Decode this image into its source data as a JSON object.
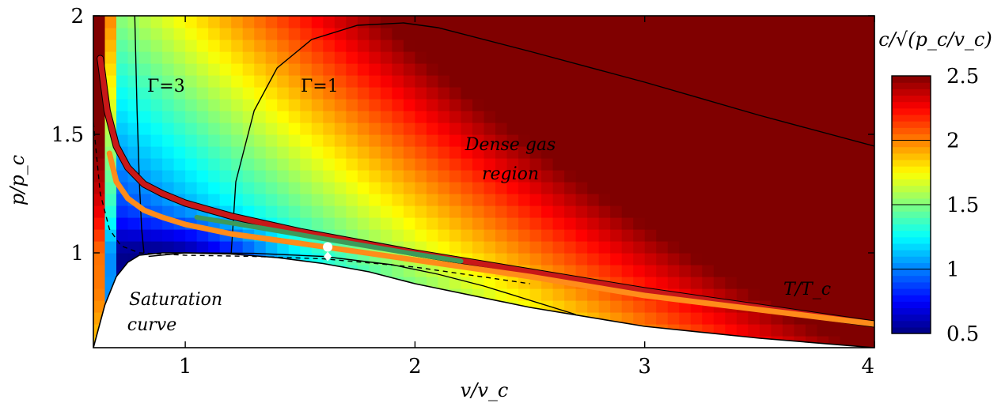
{
  "chart_data": {
    "type": "heatmap",
    "title": "",
    "xlabel": "v/v_c",
    "ylabel": "p/p_c",
    "xlim": [
      0.6,
      4.0
    ],
    "ylim": [
      0.6,
      2.0
    ],
    "x_ticks": [
      1,
      2,
      3,
      4
    ],
    "y_ticks": [
      1,
      1.5,
      2
    ],
    "x_tick_labels": [
      "1",
      "2",
      "3",
      "4"
    ],
    "y_tick_labels": [
      "1",
      "1.5",
      "2"
    ],
    "grid": false,
    "colorbar": {
      "title": "c/√(p_c/v_c)",
      "range": [
        0.5,
        2.5
      ],
      "ticks": [
        0.5,
        1,
        1.5,
        2,
        2.5
      ],
      "tick_labels": [
        "0.5",
        "1",
        "1.5",
        "2",
        "2.5"
      ],
      "colormap": "jet"
    },
    "annotations": {
      "gamma3": "Γ=3",
      "gamma1": "Γ=1",
      "dense_gas_line1": "Dense gas",
      "dense_gas_line2": "region",
      "saturation_line1": "Saturation",
      "saturation_line2": "curve",
      "isotherm": "T/T_c"
    },
    "saturation_curve": {
      "x": [
        0.6,
        0.65,
        0.7,
        0.75,
        0.8,
        0.9,
        1.0,
        1.2,
        1.4,
        1.6,
        1.8,
        2.0,
        2.5,
        3.0,
        3.5,
        4.0
      ],
      "y": [
        0.6,
        0.78,
        0.9,
        0.96,
        0.99,
        1.0,
        1.0,
        0.995,
        0.98,
        0.955,
        0.92,
        0.87,
        0.77,
        0.69,
        0.64,
        0.6
      ]
    },
    "gamma3_curve": {
      "x": [
        0.78,
        0.79,
        0.8,
        0.81,
        0.82
      ],
      "y": [
        2.0,
        1.6,
        1.3,
        1.1,
        1.0
      ]
    },
    "gamma1_curve": {
      "x": [
        1.2,
        1.22,
        1.3,
        1.4,
        1.55,
        1.75,
        1.95,
        2.1,
        2.5,
        3.0,
        3.5,
        4.0
      ],
      "y": [
        1.0,
        1.3,
        1.6,
        1.78,
        1.9,
        1.96,
        1.97,
        1.95,
        1.85,
        1.72,
        1.58,
        1.45
      ]
    },
    "gamma1_lower_curve": {
      "x": [
        0.84,
        1.0,
        1.3,
        1.6,
        1.9,
        2.1,
        2.3,
        2.5,
        2.7
      ],
      "y": [
        0.985,
        1.0,
        0.998,
        0.985,
        0.95,
        0.91,
        0.86,
        0.8,
        0.74
      ]
    },
    "dashed_curve": {
      "x": [
        0.6,
        0.63,
        0.67,
        0.72,
        0.8,
        1.0,
        1.3,
        1.6,
        2.0,
        2.5
      ],
      "y": [
        1.55,
        1.25,
        1.1,
        1.03,
        1.0,
        0.99,
        0.985,
        0.975,
        0.94,
        0.87
      ]
    },
    "series": [
      {
        "color": "#c81818",
        "x": [
          0.63,
          0.66,
          0.7,
          0.75,
          0.82,
          0.9,
          1.0,
          1.2,
          1.5,
          2.0,
          2.5,
          3.0,
          3.5,
          4.0
        ],
        "y": [
          1.82,
          1.6,
          1.45,
          1.36,
          1.29,
          1.25,
          1.21,
          1.155,
          1.09,
          1.0,
          0.92,
          0.84,
          0.77,
          0.7
        ]
      },
      {
        "color": "#ff8c1a",
        "x": [
          0.67,
          0.7,
          0.75,
          0.82,
          0.9,
          1.0,
          1.2,
          1.5,
          2.0,
          2.5,
          3.0,
          3.5,
          4.0
        ],
        "y": [
          1.42,
          1.3,
          1.23,
          1.18,
          1.15,
          1.12,
          1.08,
          1.04,
          0.97,
          0.9,
          0.82,
          0.76,
          0.7
        ]
      },
      {
        "color": "#3c9a5a",
        "x": [
          1.05,
          1.3,
          1.6,
          2.0,
          2.2
        ],
        "y": [
          1.15,
          1.11,
          1.06,
          0.995,
          0.965
        ]
      }
    ],
    "markers": [
      {
        "x": 1.62,
        "y": 1.025
      },
      {
        "x": 1.62,
        "y": 0.985
      }
    ],
    "colors": {
      "axes": "#000000",
      "saturation_fill": "#ffffff",
      "marker": "#ffffff"
    }
  }
}
